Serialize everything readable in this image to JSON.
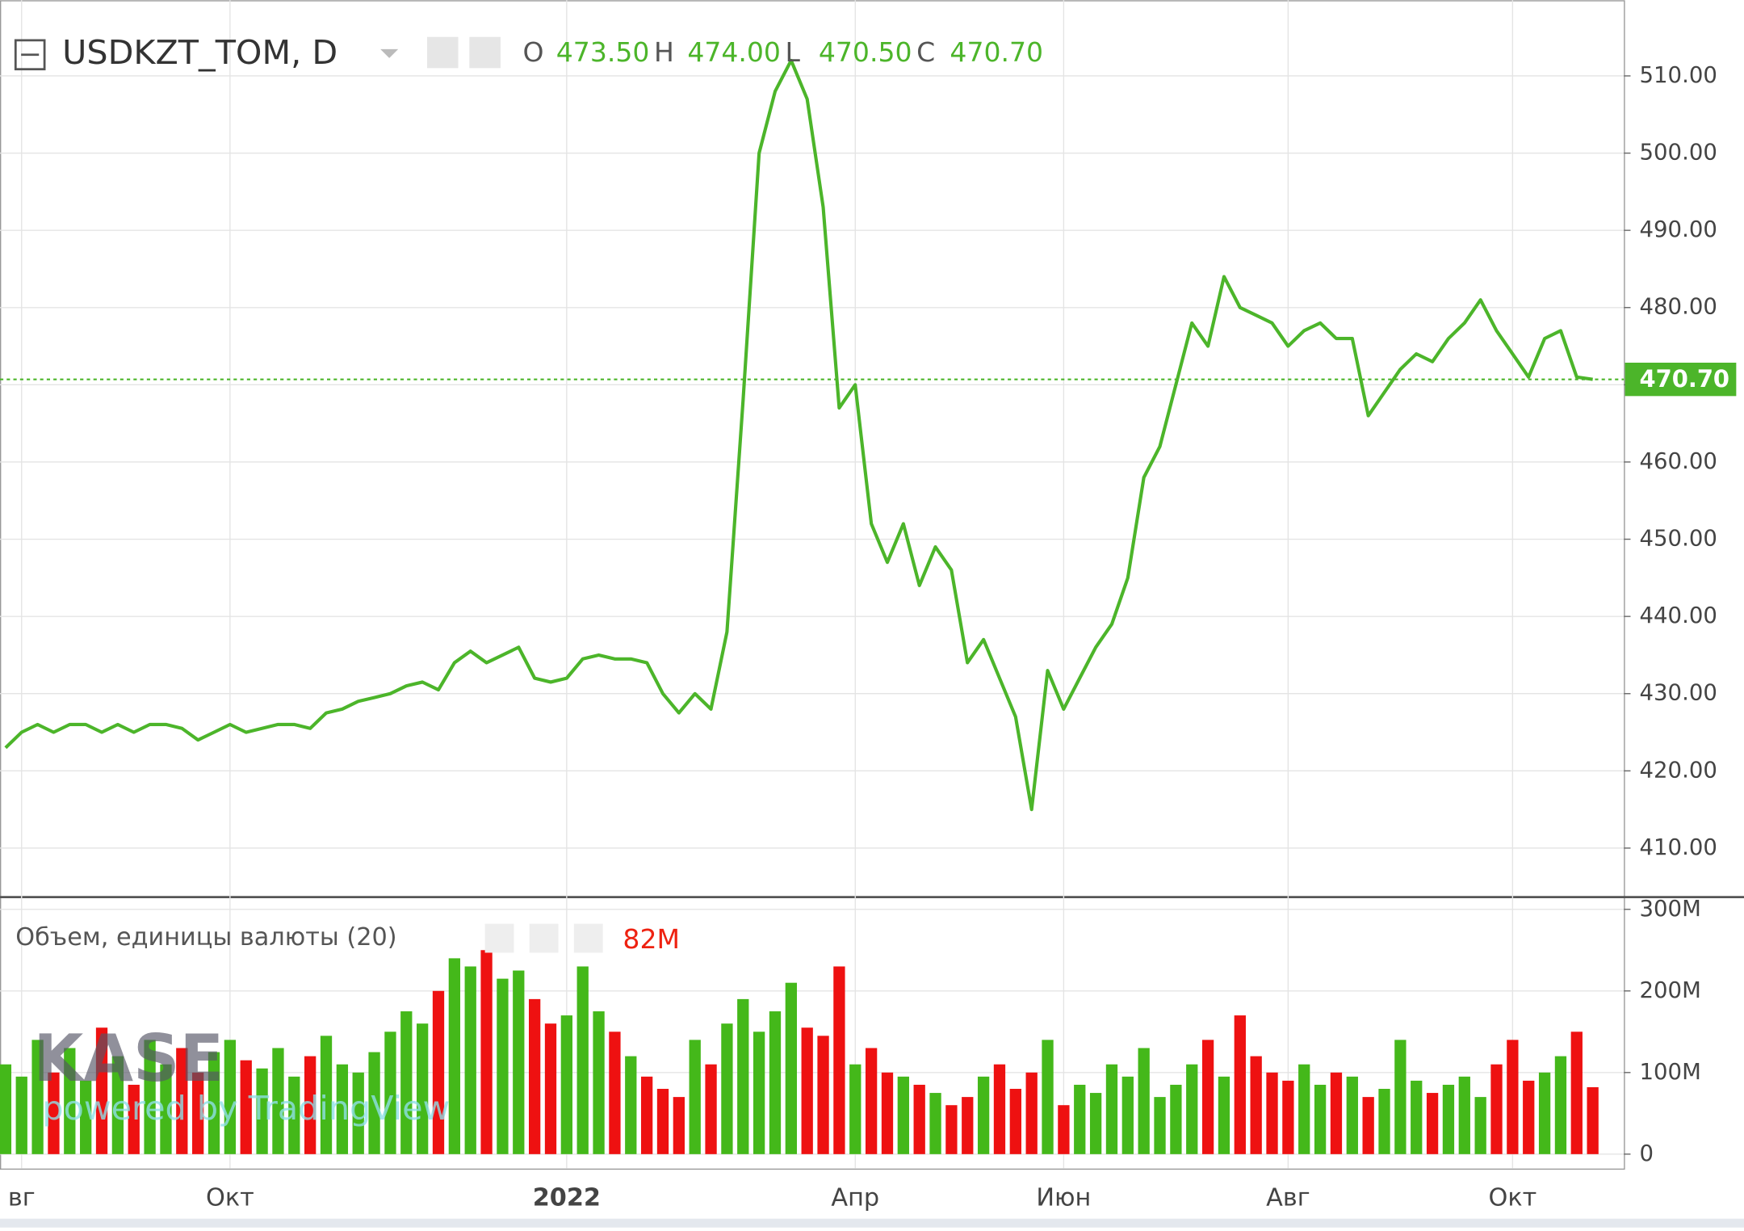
{
  "chart_data": {
    "type": "line",
    "title": "USDKZT_TOM, D",
    "ohlc": [
      {
        "name": "O",
        "value": 473.5,
        "label": "473.50"
      },
      {
        "name": "H",
        "value": 474.0,
        "label": "474.00"
      },
      {
        "name": "L",
        "value": 470.5,
        "label": "470.50"
      },
      {
        "name": "C",
        "value": 470.7,
        "label": "470.70"
      }
    ],
    "categories": [
      null,
      "вг",
      null,
      null,
      null,
      null,
      null,
      null,
      null,
      null,
      null,
      null,
      null,
      null,
      "Окт",
      null,
      null,
      null,
      null,
      null,
      null,
      null,
      null,
      null,
      null,
      null,
      null,
      null,
      null,
      null,
      null,
      null,
      null,
      null,
      null,
      "2022",
      null,
      null,
      null,
      null,
      null,
      null,
      null,
      null,
      null,
      null,
      null,
      null,
      null,
      null,
      null,
      null,
      null,
      "Апр",
      null,
      null,
      null,
      null,
      null,
      null,
      null,
      null,
      null,
      null,
      null,
      null,
      "Июн",
      null,
      null,
      null,
      null,
      null,
      null,
      null,
      null,
      null,
      null,
      null,
      null,
      null,
      "Авг",
      null,
      null,
      null,
      null,
      null,
      null,
      null,
      null,
      null,
      null,
      null,
      null,
      null,
      "Окт",
      null,
      null,
      null,
      null,
      null
    ],
    "series": [
      {
        "name": "USDKZT_TOM",
        "color": "#4cb52a",
        "values": [
          423,
          425,
          426,
          425,
          426,
          426,
          425,
          426,
          425,
          426,
          426,
          425.5,
          424,
          425,
          426,
          425,
          425.5,
          426,
          426,
          425.5,
          427.5,
          428,
          429,
          429.5,
          430,
          431,
          431.5,
          430.5,
          434,
          435.5,
          434,
          435,
          436,
          432,
          431.5,
          432,
          434.5,
          435,
          434.5,
          434.5,
          434,
          430,
          427.5,
          430,
          428,
          438,
          468,
          500,
          508,
          512,
          507,
          493,
          467,
          470,
          452,
          447,
          452,
          444,
          449,
          446,
          434,
          437,
          432,
          427,
          415,
          433,
          428,
          432,
          436,
          439,
          445,
          458,
          462,
          470,
          478,
          475,
          484,
          480,
          479,
          478,
          475,
          477,
          478,
          476,
          476,
          466,
          469,
          472,
          474,
          473,
          476,
          478,
          481,
          477,
          474,
          471,
          476,
          477,
          471,
          470.7
        ]
      }
    ],
    "ylim": [
      403.8,
      519.8
    ],
    "yticks": [
      {
        "value": 410,
        "label": "410.00"
      },
      {
        "value": 420,
        "label": "420.00"
      },
      {
        "value": 430,
        "label": "430.00"
      },
      {
        "value": 440,
        "label": "440.00"
      },
      {
        "value": 450,
        "label": "450.00"
      },
      {
        "value": 460,
        "label": "460.00"
      },
      {
        "value": 470,
        "label": "470.00"
      },
      {
        "value": 480,
        "label": "480.00"
      },
      {
        "value": 490,
        "label": "490.00"
      },
      {
        "value": 500,
        "label": "500.00"
      },
      {
        "value": 510,
        "label": "510.00"
      }
    ],
    "grid": true,
    "volume": {
      "name": "Объем, единицы валюты (20)",
      "up_color": "#44b81a",
      "down_color": "#ee1111",
      "last_label": "82M",
      "values": [
        110000000.0,
        95000000.0,
        140000000.0,
        100000000.0,
        130000000.0,
        90000000.0,
        155000000.0,
        120000000.0,
        85000000.0,
        140000000.0,
        110000000.0,
        130000000.0,
        100000000.0,
        125000000.0,
        140000000.0,
        115000000.0,
        105000000.0,
        130000000.0,
        95000000.0,
        120000000.0,
        145000000.0,
        110000000.0,
        100000000.0,
        125000000.0,
        150000000.0,
        175000000.0,
        160000000.0,
        200000000.0,
        240000000.0,
        230000000.0,
        250000000.0,
        215000000.0,
        225000000.0,
        190000000.0,
        160000000.0,
        170000000.0,
        230000000.0,
        175000000.0,
        150000000.0,
        120000000.0,
        95000000.0,
        80000000.0,
        70000000.0,
        140000000.0,
        110000000.0,
        160000000.0,
        190000000.0,
        150000000.0,
        175000000.0,
        210000000.0,
        155000000.0,
        145000000.0,
        230000000.0,
        110000000.0,
        130000000.0,
        100000000.0,
        95000000.0,
        85000000.0,
        75000000.0,
        60000000.0,
        70000000.0,
        95000000.0,
        110000000.0,
        80000000.0,
        100000000.0,
        140000000.0,
        60000000.0,
        85000000.0,
        75000000.0,
        110000000.0,
        95000000.0,
        130000000.0,
        70000000.0,
        85000000.0,
        110000000.0,
        140000000.0,
        95000000.0,
        170000000.0,
        120000000.0,
        100000000.0,
        90000000.0,
        110000000.0,
        85000000.0,
        100000000.0,
        95000000.0,
        70000000.0,
        80000000.0,
        140000000.0,
        90000000.0,
        75000000.0,
        85000000.0,
        95000000.0,
        70000000.0,
        110000000.0,
        140000000.0,
        90000000.0,
        100000000.0,
        120000000.0,
        150000000.0,
        82000000.0
      ],
      "ylim": [
        -17700000,
        312300000
      ],
      "yticks": [
        {
          "value": 0,
          "label": "0"
        },
        {
          "value": 100000000,
          "label": "100M"
        },
        {
          "value": 200000000,
          "label": "200M"
        },
        {
          "value": 300000000,
          "label": "300M"
        }
      ]
    },
    "watermark": {
      "logo": "KASE",
      "text": "powered by TradingView"
    }
  }
}
